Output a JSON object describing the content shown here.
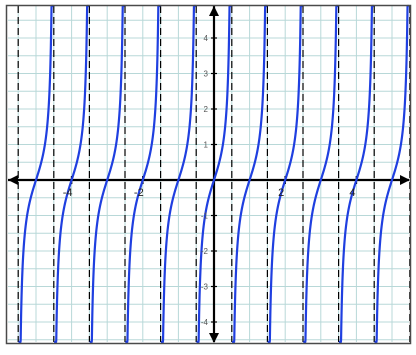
{
  "chart_data": {
    "type": "line",
    "title": "",
    "xlabel": "",
    "ylabel": "",
    "xlim": [
      -5.6,
      5.6
    ],
    "ylim": [
      -4.6,
      4.9
    ],
    "grid": true,
    "x_tick_values": [
      -4,
      -2,
      2,
      4
    ],
    "x_tick_labels": [
      "-4",
      "-2",
      "2",
      "4"
    ],
    "y_tick_values": [
      4,
      3,
      2,
      1,
      -1,
      -2,
      -3,
      -4
    ],
    "y_tick_labels": [
      "4",
      "3",
      "2",
      "1",
      "-1",
      "-2",
      "-3",
      "-4"
    ],
    "series": [
      {
        "function": "tan(pi*x)",
        "period": 1,
        "zeros": [
          -5,
          -4,
          -3,
          -2,
          -1,
          0,
          1,
          2,
          3,
          4,
          5
        ]
      }
    ],
    "asymptotes": [
      -5.5,
      -4.5,
      -3.5,
      -2.5,
      -1.5,
      -0.5,
      0.5,
      1.5,
      2.5,
      3.5,
      4.5,
      5.5
    ],
    "colors": {
      "curve": "#1f3fe0",
      "axes": "#000000",
      "grid": "#b8d8d8",
      "asymptote": "#000000",
      "border": "#4a4a4a"
    }
  }
}
